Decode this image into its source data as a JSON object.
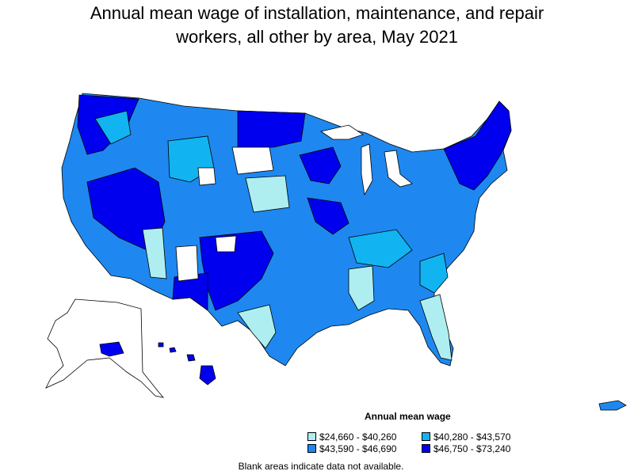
{
  "title_line1": "Annual mean wage of installation, maintenance, and repair",
  "title_line2": "workers, all other by area, May 2021",
  "legend": {
    "title": "Annual mean wage",
    "items": [
      {
        "label": "$24,660 - $40,260",
        "color": "#aeeef0"
      },
      {
        "label": "$40,280 - $43,570",
        "color": "#11b4f0"
      },
      {
        "label": "$43,590 - $46,690",
        "color": "#1e88f0"
      },
      {
        "label": "$46,750 - $73,240",
        "color": "#0000ee"
      }
    ]
  },
  "note": "Blank areas indicate data not available.",
  "colors": {
    "outline": "#000000",
    "blank": "#ffffff"
  }
}
